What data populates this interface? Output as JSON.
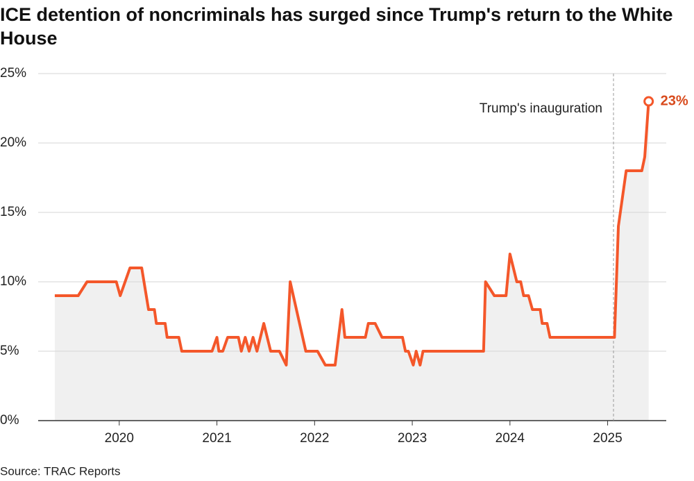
{
  "chart_data": {
    "type": "line",
    "title": "ICE detention of noncriminals has surged since Trump's return to the White House",
    "source": "Source: TRAC Reports",
    "color": "#f4572a",
    "area_color": "#f0f0f0",
    "grid": true,
    "x": [
      2019.34,
      2019.58,
      2019.67,
      2019.97,
      2020.01,
      2020.11,
      2020.23,
      2020.3,
      2020.36,
      2020.38,
      2020.47,
      2020.49,
      2020.61,
      2020.64,
      2020.95,
      2021.0,
      2021.02,
      2021.06,
      2021.11,
      2021.22,
      2021.25,
      2021.29,
      2021.33,
      2021.37,
      2021.41,
      2021.48,
      2021.55,
      2021.64,
      2021.71,
      2021.75,
      2021.91,
      2022.03,
      2022.11,
      2022.21,
      2022.28,
      2022.31,
      2022.52,
      2022.55,
      2022.62,
      2022.69,
      2022.9,
      2022.93,
      2022.96,
      2023.01,
      2023.04,
      2023.08,
      2023.11,
      2023.73,
      2023.75,
      2023.84,
      2023.96,
      2024.0,
      2024.07,
      2024.11,
      2024.14,
      2024.19,
      2024.23,
      2024.31,
      2024.33,
      2024.38,
      2024.41,
      2025.07,
      2025.11,
      2025.19,
      2025.35,
      2025.38,
      2025.42
    ],
    "values": [
      9,
      9,
      10,
      10,
      9,
      11,
      11,
      8,
      8,
      7,
      7,
      6,
      6,
      5,
      5,
      6,
      5,
      5,
      6,
      6,
      5,
      6,
      5,
      6,
      5,
      7,
      5,
      5,
      4,
      10,
      5,
      5,
      4,
      4,
      8,
      6,
      6,
      7,
      7,
      6,
      6,
      5,
      5,
      4,
      5,
      4,
      5,
      5,
      10,
      9,
      9,
      12,
      10,
      10,
      9,
      9,
      8,
      8,
      7,
      7,
      6,
      6,
      14,
      18,
      18,
      19,
      23
    ],
    "value_labels": [
      null,
      null,
      null,
      null,
      null,
      null,
      null,
      null,
      null,
      null,
      null,
      null,
      null,
      null,
      null,
      null,
      null,
      null,
      null,
      null,
      null,
      null,
      null,
      null,
      null,
      null,
      null,
      null,
      null,
      null,
      null,
      null,
      null,
      null,
      null,
      null,
      null,
      null,
      null,
      null,
      null,
      null,
      null,
      null,
      null,
      null,
      null,
      null,
      null,
      null,
      null,
      null,
      null,
      null,
      null,
      null,
      null,
      null,
      null,
      null,
      null,
      null,
      null,
      null,
      null,
      null,
      "23%"
    ],
    "xlim": [
      2019.17,
      2025.6
    ],
    "xticks": [
      2020,
      2021,
      2022,
      2023,
      2024,
      2025
    ],
    "ylim": [
      0,
      25
    ],
    "yticks": [
      {
        "value": 0,
        "label": "0%"
      },
      {
        "value": 5,
        "label": "5%"
      },
      {
        "value": 10,
        "label": "10%"
      },
      {
        "value": 15,
        "label": "15%"
      },
      {
        "value": 20,
        "label": "20%"
      },
      {
        "value": 25,
        "label": "25%"
      }
    ],
    "annotations": [
      {
        "text": "Trump's inauguration",
        "x": 2025.06
      }
    ]
  }
}
